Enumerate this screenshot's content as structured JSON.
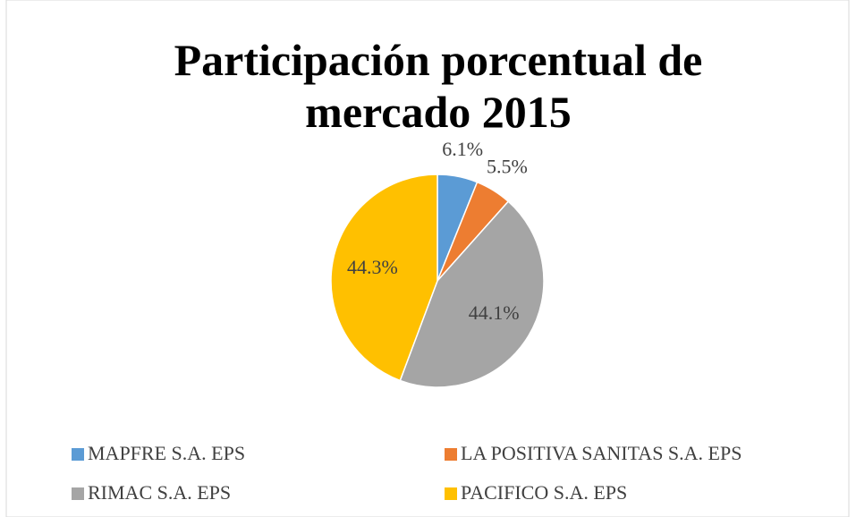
{
  "chart_data": {
    "type": "pie",
    "title": "Participación porcentual de mercado 2015",
    "categories": [
      "MAPFRE S.A. EPS",
      "LA POSITIVA SANITAS S.A. EPS",
      "RIMAC S.A. EPS",
      "PACIFICO S.A. EPS"
    ],
    "values": [
      6.1,
      5.5,
      44.1,
      44.3
    ],
    "value_labels": [
      "6.1%",
      "5.5%",
      "44.1%",
      "44.3%"
    ],
    "colors": [
      "#5b9bd5",
      "#ed7d31",
      "#a5a5a5",
      "#ffc000"
    ],
    "legend": "bottom"
  }
}
